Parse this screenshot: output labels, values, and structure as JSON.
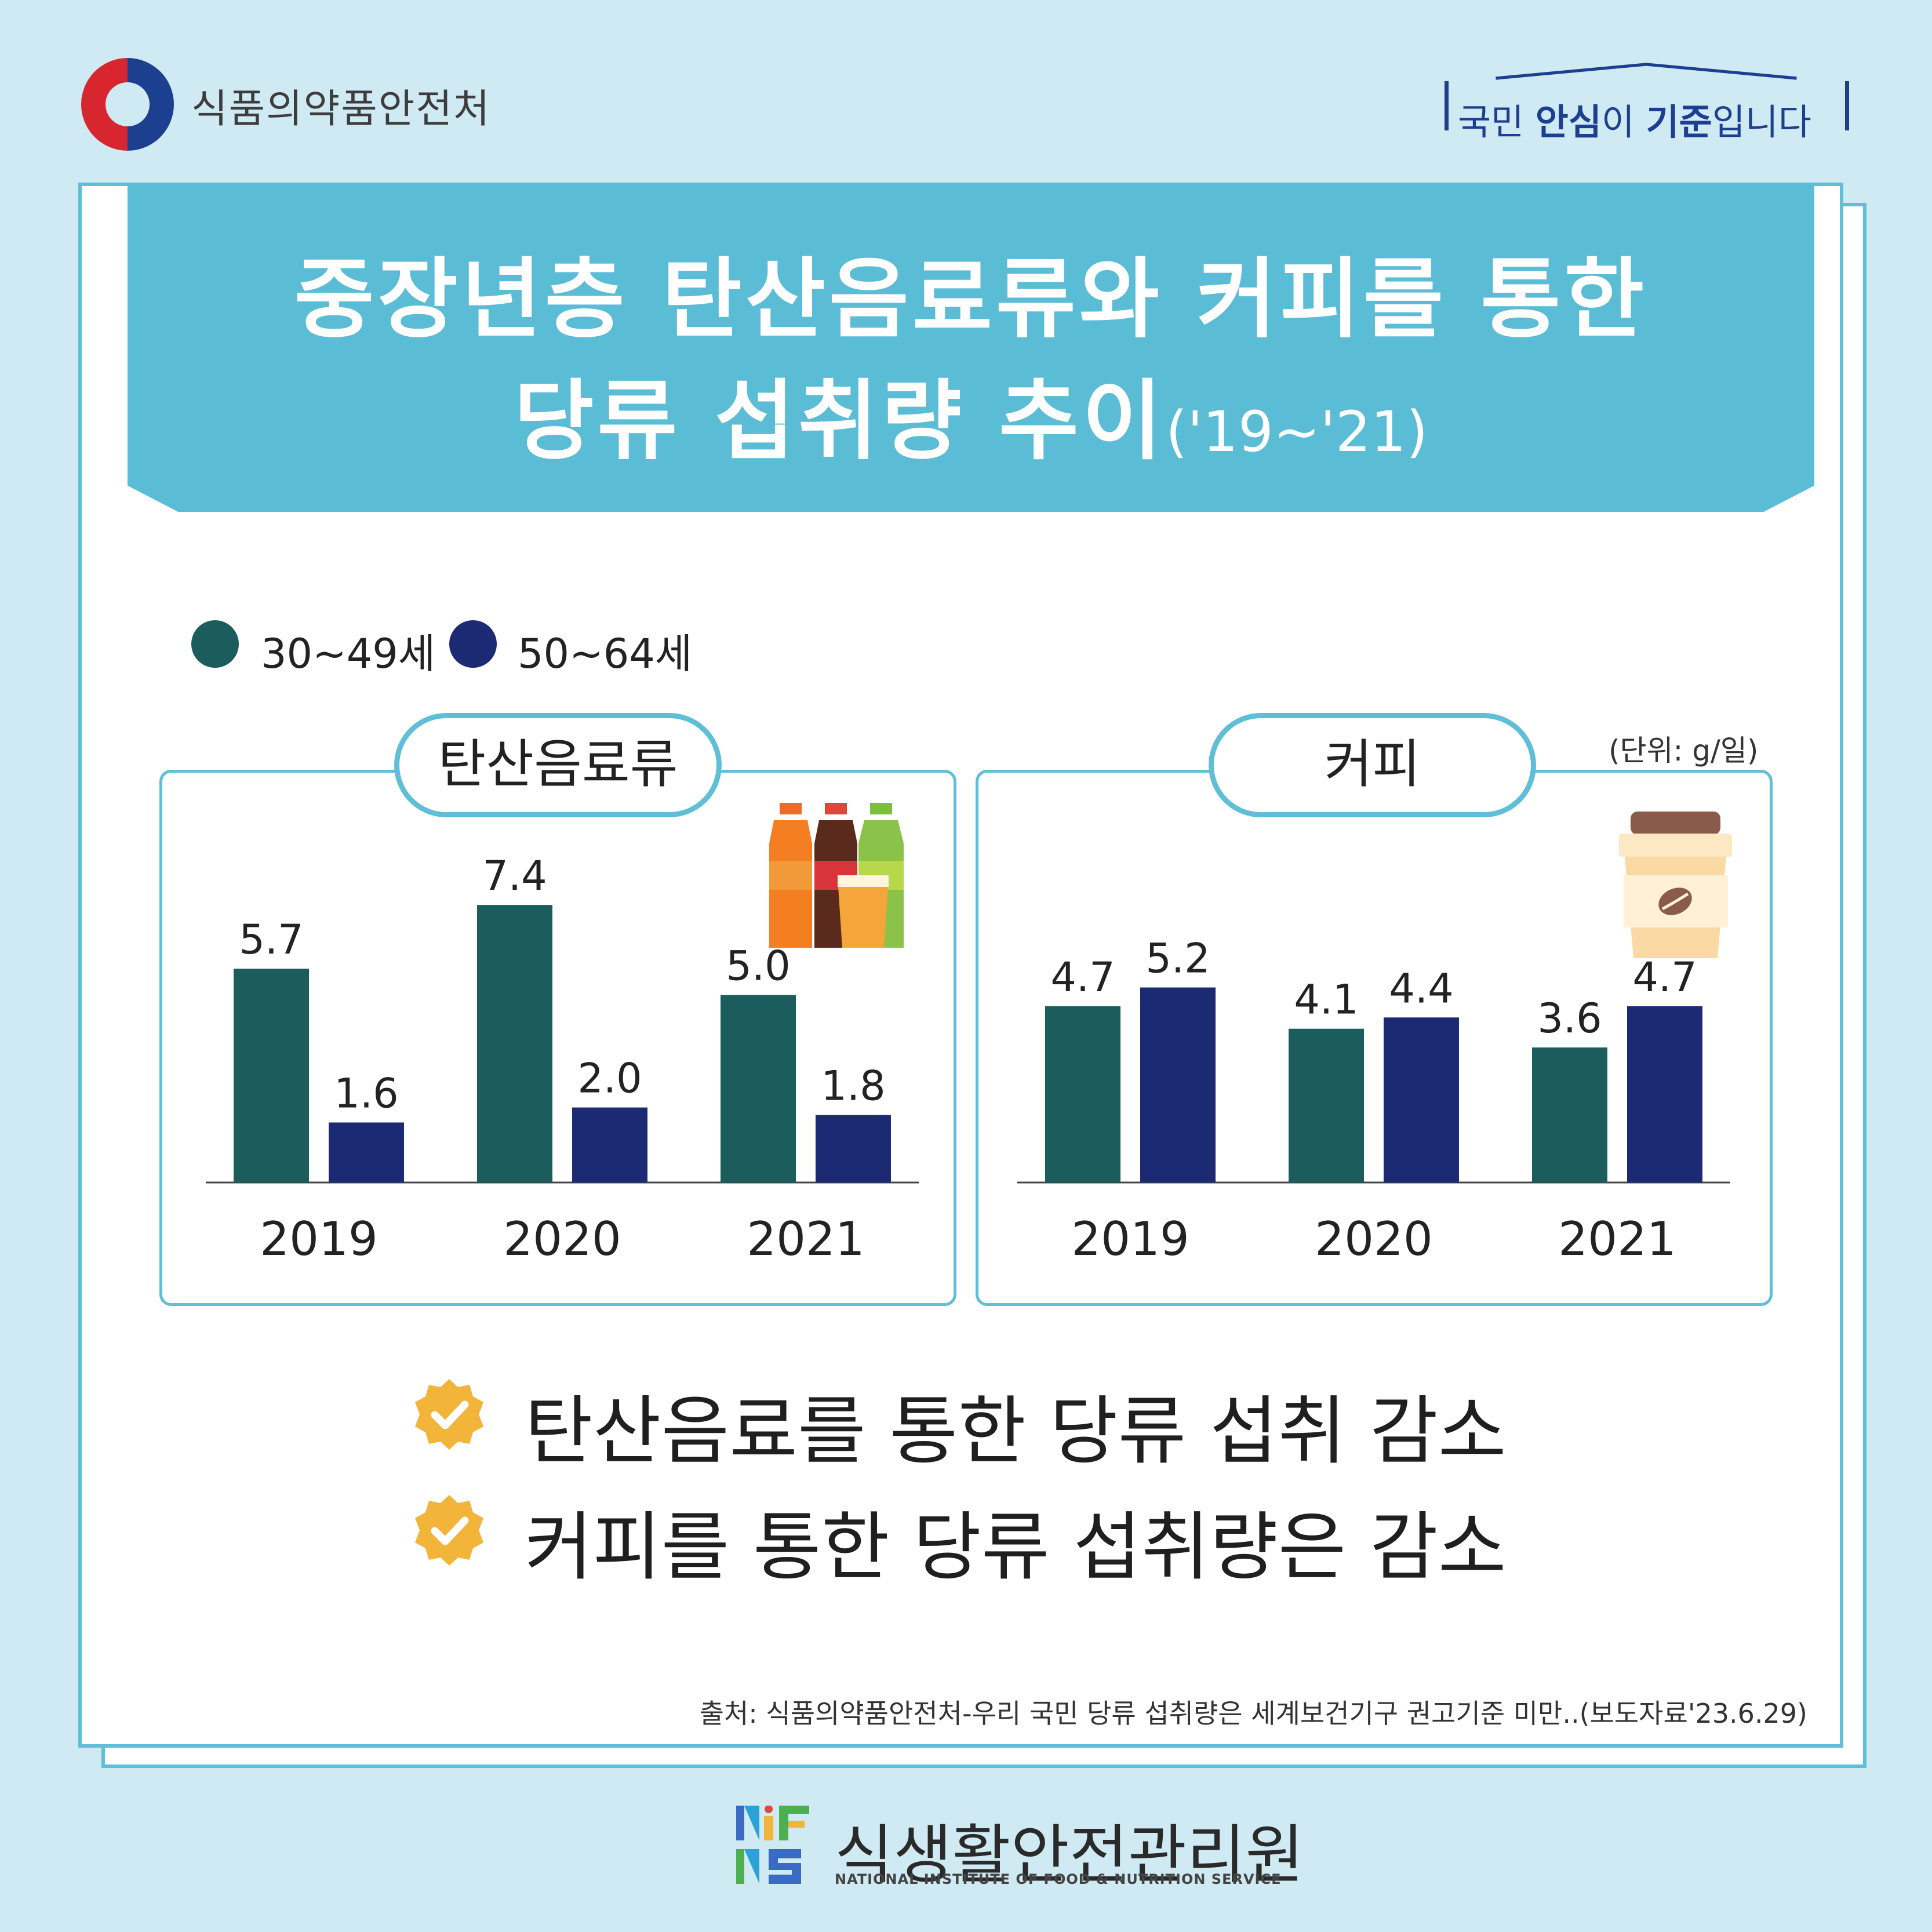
{
  "header": {
    "agency_name": "식품의약품안전처",
    "slogan_1": "국민 ",
    "slogan_2": "안심",
    "slogan_3": "이 ",
    "slogan_4": "기준",
    "slogan_5": "입니다"
  },
  "title": {
    "line1": "중장년층 탄산음료류와 커피를 통한",
    "line2": "당류 섭취량 추이",
    "line2_sub": "('19~'21)"
  },
  "legend": [
    {
      "label": "30~49세",
      "color": "#1b5c5c"
    },
    {
      "label": "50~64세",
      "color": "#1b2a73"
    }
  ],
  "unit_label": "(단위: g/일)",
  "panels": {
    "soda_title": "탄산음료류",
    "coffee_title": "커피"
  },
  "chart_data": [
    {
      "type": "bar",
      "title": "탄산음료류",
      "categories": [
        "2019",
        "2020",
        "2021"
      ],
      "series": [
        {
          "name": "30~49세",
          "values": [
            5.7,
            7.4,
            5.0
          ],
          "labels": [
            "5.7",
            "7.4",
            "5.0"
          ],
          "color": "#1b5c5c"
        },
        {
          "name": "50~64세",
          "values": [
            1.6,
            2.0,
            1.8
          ],
          "labels": [
            "1.6",
            "2.0",
            "1.8"
          ],
          "color": "#1b2a73"
        }
      ],
      "unit": "g/일",
      "ylim": [
        0,
        8.5
      ],
      "grid": false,
      "legend": "top-left"
    },
    {
      "type": "bar",
      "title": "커피",
      "categories": [
        "2019",
        "2020",
        "2021"
      ],
      "series": [
        {
          "name": "30~49세",
          "values": [
            4.7,
            4.1,
            3.6
          ],
          "labels": [
            "4.7",
            "4.1",
            "3.6"
          ],
          "color": "#1b5c5c"
        },
        {
          "name": "50~64세",
          "values": [
            5.2,
            4.4,
            4.7
          ],
          "labels": [
            "5.2",
            "4.4",
            "4.7"
          ],
          "color": "#1b2a73"
        }
      ],
      "unit": "g/일",
      "ylim": [
        0,
        8.5
      ],
      "grid": false,
      "legend": "top-left"
    }
  ],
  "summary": [
    "탄산음료를 통한 당류 섭취 감소",
    "커피를 통한 당류 섭취량은 감소"
  ],
  "source": "출처: 식품의약품안전처-우리 국민 당류 섭취량은 세계보건기구 권고기준 미만..(보도자료'23.6.29)",
  "footer": {
    "org_name": "식생활안전관리원",
    "org_name_en": "NATIONAL INSTITUTE OF FOOD & NUTRITION SERVICE",
    "logo_text": "NIFNS"
  },
  "colors": {
    "background": "#cfeaf2",
    "accent": "#5bbcd6",
    "check": "#f2b53a"
  }
}
